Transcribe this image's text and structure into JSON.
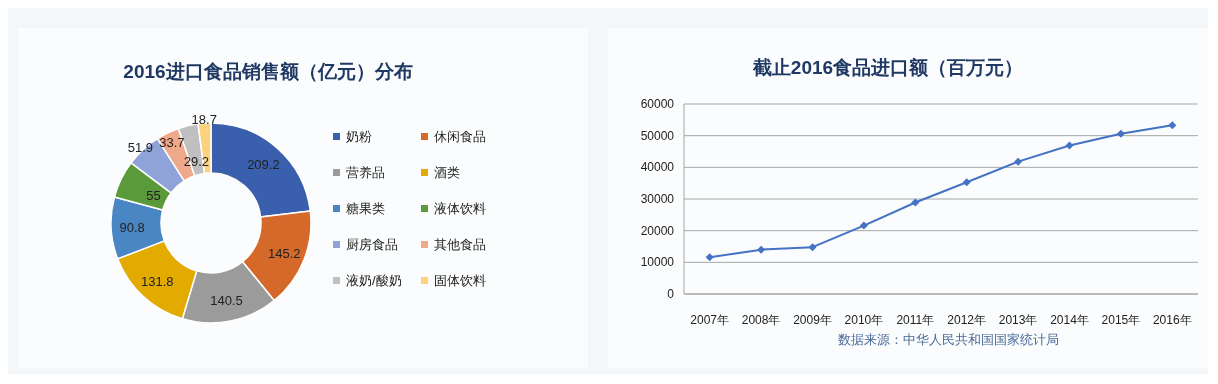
{
  "chart_data": [
    {
      "type": "donut",
      "title": "2016进口食品销售额（亿元）分布",
      "categories": [
        "奶粉",
        "休闲食品",
        "营养品",
        "酒类",
        "糖果类",
        "液体饮料",
        "厨房食品",
        "其他食品",
        "液奶/酸奶",
        "固体饮料"
      ],
      "values": [
        209.2,
        145.2,
        140.5,
        131.8,
        90.8,
        55,
        51.9,
        33.7,
        29.2,
        18.7
      ],
      "colors": [
        "#3a5fad",
        "#d4692a",
        "#9b9b9b",
        "#e3aa00",
        "#4a86c4",
        "#5a9a3a",
        "#8fa3d8",
        "#f0a88a",
        "#c0c0c0",
        "#fcd27f"
      ],
      "data_labels": true,
      "legend": "right"
    },
    {
      "type": "line",
      "title": "截止2016食品进口额（百万元）",
      "categories": [
        "2007年",
        "2008年",
        "2009年",
        "2010年",
        "2011年",
        "2012年",
        "2013年",
        "2014年",
        "2015年",
        "2016年"
      ],
      "series": [
        {
          "color": "#4472c4",
          "values": [
            11600,
            14000,
            14800,
            21600,
            28900,
            35300,
            41800,
            46900,
            50600,
            53300
          ]
        }
      ],
      "ylim": [
        0,
        60000
      ],
      "yticks": [
        0,
        10000,
        20000,
        30000,
        40000,
        50000,
        60000
      ],
      "grid": "y",
      "marker": "diamond",
      "legend": false,
      "annotations": [
        "数据来源：中华人民共和国国家统计局"
      ]
    }
  ]
}
